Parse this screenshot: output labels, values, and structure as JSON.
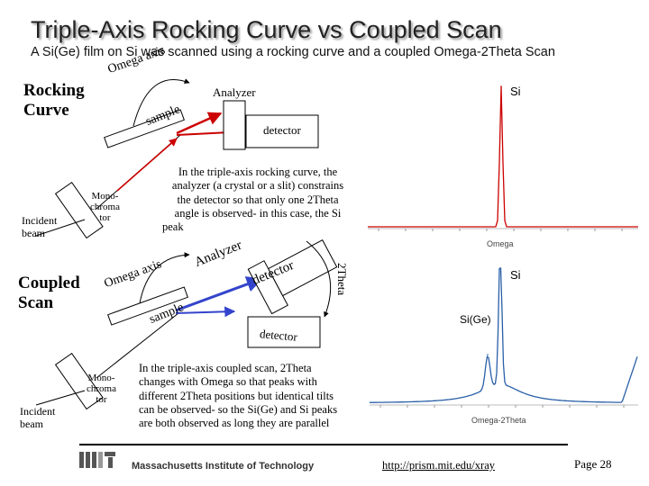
{
  "title": "Triple-Axis Rocking Curve vs Coupled Scan",
  "subtitle": "A Si(Ge) film on Si was scanned using a rocking curve and a coupled Omega-2Theta Scan",
  "top_section": {
    "heading_line1": "Rocking",
    "heading_line2": "Curve",
    "omega_axis_label": "Omega axis",
    "sample_label": "sample",
    "analyzer_label": "Analyzer",
    "detector_label": "detector",
    "incident_beam_line1": "Incident",
    "incident_beam_line2": "beam",
    "monochromator_line1": "Mono-",
    "monochromator_line2": "chroma",
    "monochromator_line3": "tor",
    "note_lines": [
      "In the triple-axis rocking curve, the",
      "analyzer (a crystal or a slit) constrains",
      "the detector so that only one 2Theta",
      "angle is observed- in this case, the Si",
      "peak"
    ]
  },
  "bottom_section": {
    "heading_line1": "Coupled",
    "heading_line2": "Scan",
    "omega_axis_label": "Omega axis",
    "sample_label": "sample",
    "analyzer_label": "Analyzer",
    "detector_label": "detector",
    "two_theta_label": "2Theta",
    "incident_beam_line1": "Incident",
    "incident_beam_line2": "beam",
    "monochromator_line1": "Mono-",
    "monochromator_line2": "chroma",
    "monochromator_line3": "tor",
    "note_lines": [
      "In the triple-axis coupled scan, 2Theta",
      "changes with Omega so that peaks with",
      "different 2Theta positions but identical tilts",
      "can be observed- so the Si(Ge) and Si peaks",
      "are both observed as long they are parallel"
    ]
  },
  "footer": {
    "institution": "Massachusetts Institute of Technology",
    "url": "http://prism.mit.edu/xray",
    "page": "Page 28"
  },
  "colors": {
    "peak_line": "#cc0000",
    "beam_arrow": "#cc0000",
    "blue_arrow": "#3344cc"
  },
  "chart_data": [
    {
      "type": "line",
      "xlabel": "Omega",
      "annotations": [
        "Si"
      ],
      "series": [
        {
          "peaks": [
            {
              "label": "Si",
              "relative_height": 1.0
            }
          ]
        }
      ]
    },
    {
      "type": "line",
      "xlabel": "Omega-2Theta",
      "annotations": [
        "Si",
        "Si(Ge)"
      ],
      "series": [
        {
          "peaks": [
            {
              "label": "Si",
              "relative_height": 1.0
            },
            {
              "label": "Si(Ge)",
              "relative_height": 0.36
            }
          ]
        }
      ]
    }
  ]
}
